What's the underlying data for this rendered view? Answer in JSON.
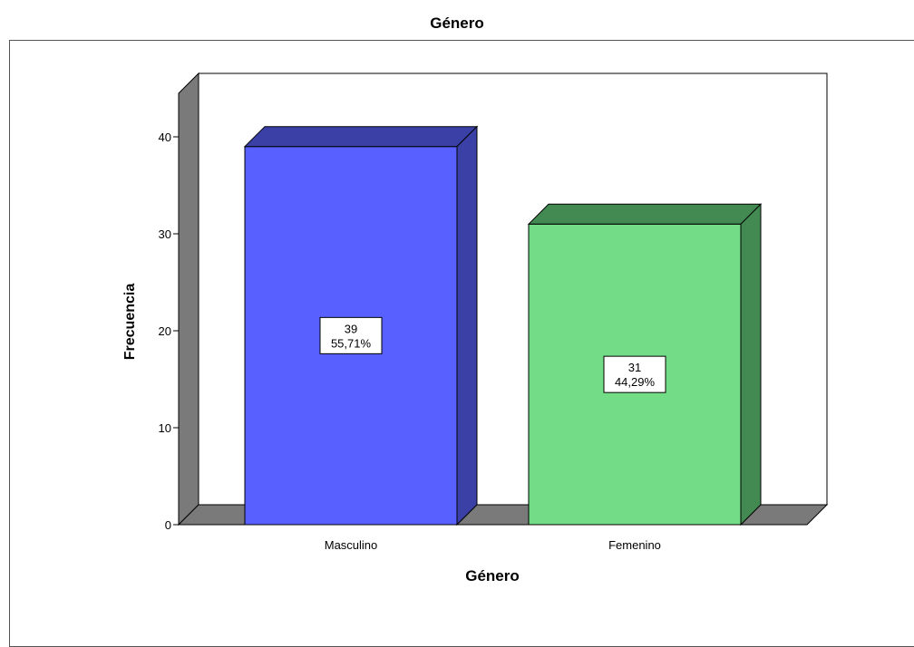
{
  "chart_data": {
    "type": "bar",
    "title": "Género",
    "xlabel": "Género",
    "ylabel": "Frecuencia",
    "categories": [
      "Masculino",
      "Femenino"
    ],
    "values": [
      39,
      31
    ],
    "value_labels": [
      "39",
      "31"
    ],
    "percent_labels": [
      "55,71%",
      "44,29%"
    ],
    "colors": [
      "#5861ff",
      "#72dc87"
    ],
    "side_colors": [
      "#3a40a6",
      "#438a52"
    ],
    "ylim": [
      0,
      40
    ],
    "yticks": [
      "0",
      "10",
      "20",
      "30",
      "40"
    ],
    "grid": false,
    "style": "3d"
  }
}
